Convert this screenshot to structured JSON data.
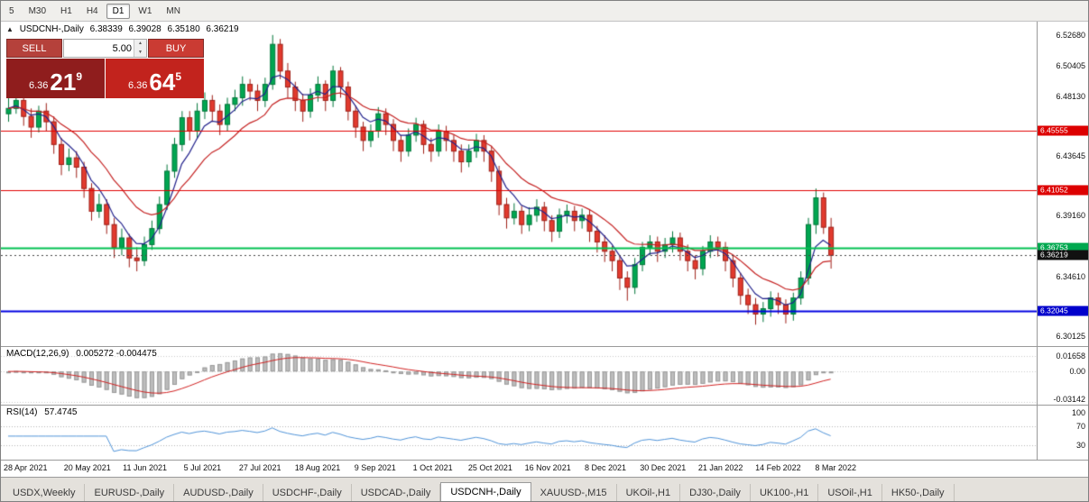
{
  "toolbar": {
    "timeframes": [
      {
        "label": "5",
        "active": false
      },
      {
        "label": "M30",
        "active": false
      },
      {
        "label": "H1",
        "active": false
      },
      {
        "label": "H4",
        "active": false
      },
      {
        "label": "D1",
        "active": true
      },
      {
        "label": "W1",
        "active": false
      },
      {
        "label": "MN",
        "active": false
      }
    ]
  },
  "symbol_info": {
    "arrow": "▲",
    "name": "USDCNH-,Daily",
    "open": "6.38339",
    "high": "6.39028",
    "low": "6.35180",
    "close": "6.36219"
  },
  "trade_panel": {
    "sell_label": "SELL",
    "buy_label": "BUY",
    "volume": "5.00",
    "sell_price": {
      "big": "6.36",
      "mid": "21",
      "sup": "9"
    },
    "buy_price": {
      "big": "6.36",
      "mid": "64",
      "sup": "5"
    }
  },
  "price_axis": {
    "ticks": [
      {
        "label": "6.52680",
        "value": 6.5268
      },
      {
        "label": "6.50405",
        "value": 6.50405
      },
      {
        "label": "6.48130",
        "value": 6.4813
      },
      {
        "label": "6.43645",
        "value": 6.43645
      },
      {
        "label": "6.39160",
        "value": 6.3916
      },
      {
        "label": "6.34610",
        "value": 6.3461
      },
      {
        "label": "6.30125",
        "value": 6.30125
      }
    ],
    "tags": [
      {
        "label": "6.45555",
        "value": 6.45555,
        "color": "#dd0000"
      },
      {
        "label": "6.41052",
        "value": 6.41052,
        "color": "#dd0000"
      },
      {
        "label": "6.36753",
        "value": 6.36753,
        "color": "#00a84f"
      },
      {
        "label": "6.36219",
        "value": 6.36219,
        "color": "#111111"
      },
      {
        "label": "6.32045",
        "value": 6.32045,
        "color": "#0000cc"
      }
    ]
  },
  "macd_panel": {
    "label": "MACD(12,26,9)",
    "values": "0.005272 -0.004475"
  },
  "rsi_panel": {
    "label": "RSI(14)",
    "value": "57.4745"
  },
  "chart_data": {
    "type": "candlestick",
    "symbol": "USDCNH-",
    "timeframe": "Daily",
    "ohlc_display": {
      "open": 6.38339,
      "high": 6.39028,
      "low": 6.3518,
      "close": 6.36219
    },
    "price_range": [
      6.294,
      6.537
    ],
    "bull_color": "#00a651",
    "bull_border": "#00763a",
    "bear_color": "#e23a2e",
    "bear_border": "#9e1f17",
    "overlays": [
      {
        "name": "ma-fast",
        "type": "ema",
        "period": 5,
        "color": "#22228c"
      },
      {
        "name": "ma-slow",
        "type": "ema",
        "period": 13,
        "color": "#c42020"
      }
    ],
    "hlines": [
      {
        "value": 6.45555,
        "color": "#e00000",
        "width": 1,
        "style": "solid"
      },
      {
        "value": 6.41052,
        "color": "#e00000",
        "width": 1,
        "style": "solid"
      },
      {
        "value": 6.36753,
        "color": "#00c050",
        "width": 2,
        "style": "solid"
      },
      {
        "value": 6.32045,
        "color": "#0000e0",
        "width": 2,
        "style": "solid"
      },
      {
        "value": 6.36219,
        "color": "#444444",
        "width": 1,
        "style": "dotted"
      }
    ],
    "x_labels": [
      "28 Apr 2021",
      "20 May 2021",
      "11 Jun 2021",
      "5 Jul 2021",
      "27 Jul 2021",
      "18 Aug 2021",
      "9 Sep 2021",
      "1 Oct 2021",
      "25 Oct 2021",
      "16 Nov 2021",
      "8 Dec 2021",
      "30 Dec 2021",
      "21 Jan 2022",
      "14 Feb 2022",
      "8 Mar 2022"
    ],
    "candles": [
      [
        6.468,
        6.48,
        6.462,
        6.472
      ],
      [
        6.472,
        6.484,
        6.468,
        6.478
      ],
      [
        6.478,
        6.481,
        6.459,
        6.466
      ],
      [
        6.466,
        6.472,
        6.45,
        6.458
      ],
      [
        6.458,
        6.474,
        6.454,
        6.47
      ],
      [
        6.47,
        6.476,
        6.455,
        6.462
      ],
      [
        6.462,
        6.466,
        6.438,
        6.445
      ],
      [
        6.445,
        6.45,
        6.422,
        6.43
      ],
      [
        6.43,
        6.442,
        6.425,
        6.435
      ],
      [
        6.435,
        6.44,
        6.42,
        6.428
      ],
      [
        6.428,
        6.432,
        6.405,
        6.412
      ],
      [
        6.412,
        6.416,
        6.388,
        6.395
      ],
      [
        6.395,
        6.408,
        6.39,
        6.4
      ],
      [
        6.4,
        6.404,
        6.378,
        6.385
      ],
      [
        6.385,
        6.39,
        6.36,
        6.368
      ],
      [
        6.368,
        6.382,
        6.362,
        6.375
      ],
      [
        6.375,
        6.378,
        6.353,
        6.36
      ],
      [
        6.36,
        6.368,
        6.35,
        6.358
      ],
      [
        6.358,
        6.376,
        6.354,
        6.37
      ],
      [
        6.37,
        6.388,
        6.366,
        6.382
      ],
      [
        6.382,
        6.406,
        6.378,
        6.4
      ],
      [
        6.4,
        6.43,
        6.396,
        6.425
      ],
      [
        6.425,
        6.45,
        6.42,
        6.445
      ],
      [
        6.445,
        6.47,
        6.44,
        6.465
      ],
      [
        6.465,
        6.47,
        6.448,
        6.455
      ],
      [
        6.455,
        6.476,
        6.45,
        6.47
      ],
      [
        6.47,
        6.484,
        6.464,
        6.478
      ],
      [
        6.478,
        6.482,
        6.462,
        6.47
      ],
      [
        6.47,
        6.475,
        6.452,
        6.46
      ],
      [
        6.46,
        6.48,
        6.455,
        6.475
      ],
      [
        6.475,
        6.486,
        6.47,
        6.48
      ],
      [
        6.48,
        6.496,
        6.474,
        6.49
      ],
      [
        6.49,
        6.494,
        6.478,
        6.485
      ],
      [
        6.485,
        6.49,
        6.47,
        6.478
      ],
      [
        6.478,
        6.495,
        6.473,
        6.49
      ],
      [
        6.49,
        6.527,
        6.486,
        6.52
      ],
      [
        6.52,
        6.524,
        6.494,
        6.5
      ],
      [
        6.5,
        6.506,
        6.48,
        6.488
      ],
      [
        6.488,
        6.492,
        6.47,
        6.478
      ],
      [
        6.478,
        6.483,
        6.462,
        6.47
      ],
      [
        6.47,
        6.487,
        6.465,
        6.482
      ],
      [
        6.482,
        6.496,
        6.477,
        6.49
      ],
      [
        6.49,
        6.493,
        6.47,
        6.478
      ],
      [
        6.478,
        6.504,
        6.473,
        6.5
      ],
      [
        6.5,
        6.503,
        6.48,
        6.488
      ],
      [
        6.488,
        6.492,
        6.463,
        6.47
      ],
      [
        6.47,
        6.474,
        6.45,
        6.458
      ],
      [
        6.458,
        6.462,
        6.44,
        6.448
      ],
      [
        6.448,
        6.46,
        6.443,
        6.455
      ],
      [
        6.455,
        6.473,
        6.45,
        6.468
      ],
      [
        6.468,
        6.472,
        6.452,
        6.46
      ],
      [
        6.46,
        6.464,
        6.44,
        6.448
      ],
      [
        6.448,
        6.452,
        6.432,
        6.44
      ],
      [
        6.44,
        6.457,
        6.436,
        6.452
      ],
      [
        6.452,
        6.465,
        6.447,
        6.46
      ],
      [
        6.46,
        6.463,
        6.438,
        6.445
      ],
      [
        6.445,
        6.45,
        6.432,
        6.44
      ],
      [
        6.44,
        6.46,
        6.436,
        6.455
      ],
      [
        6.455,
        6.459,
        6.44,
        6.448
      ],
      [
        6.448,
        6.452,
        6.432,
        6.44
      ],
      [
        6.44,
        6.445,
        6.424,
        6.432
      ],
      [
        6.432,
        6.445,
        6.428,
        6.44
      ],
      [
        6.44,
        6.453,
        6.435,
        6.448
      ],
      [
        6.448,
        6.452,
        6.432,
        6.44
      ],
      [
        6.44,
        6.444,
        6.417,
        6.425
      ],
      [
        6.425,
        6.429,
        6.392,
        6.4
      ],
      [
        6.4,
        6.405,
        6.382,
        6.39
      ],
      [
        6.39,
        6.401,
        6.385,
        6.395
      ],
      [
        6.395,
        6.399,
        6.378,
        6.385
      ],
      [
        6.385,
        6.398,
        6.38,
        6.392
      ],
      [
        6.392,
        6.404,
        6.387,
        6.398
      ],
      [
        6.398,
        6.402,
        6.38,
        6.388
      ],
      [
        6.388,
        6.392,
        6.372,
        6.38
      ],
      [
        6.38,
        6.397,
        6.375,
        6.392
      ],
      [
        6.392,
        6.4,
        6.386,
        6.395
      ],
      [
        6.395,
        6.399,
        6.38,
        6.388
      ],
      [
        6.388,
        6.397,
        6.382,
        6.392
      ],
      [
        6.392,
        6.396,
        6.372,
        6.38
      ],
      [
        6.38,
        6.384,
        6.364,
        6.372
      ],
      [
        6.372,
        6.377,
        6.357,
        6.365
      ],
      [
        6.365,
        6.369,
        6.35,
        6.358
      ],
      [
        6.358,
        6.362,
        6.336,
        6.345
      ],
      [
        6.345,
        6.35,
        6.328,
        6.338
      ],
      [
        6.338,
        6.36,
        6.333,
        6.355
      ],
      [
        6.355,
        6.372,
        6.35,
        6.368
      ],
      [
        6.368,
        6.377,
        6.362,
        6.372
      ],
      [
        6.372,
        6.376,
        6.357,
        6.365
      ],
      [
        6.365,
        6.375,
        6.36,
        6.37
      ],
      [
        6.37,
        6.38,
        6.364,
        6.375
      ],
      [
        6.375,
        6.379,
        6.358,
        6.365
      ],
      [
        6.365,
        6.37,
        6.35,
        6.358
      ],
      [
        6.358,
        6.362,
        6.344,
        6.352
      ],
      [
        6.352,
        6.369,
        6.347,
        6.365
      ],
      [
        6.365,
        6.377,
        6.36,
        6.372
      ],
      [
        6.372,
        6.376,
        6.361,
        6.368
      ],
      [
        6.368,
        6.372,
        6.35,
        6.358
      ],
      [
        6.358,
        6.362,
        6.338,
        6.345
      ],
      [
        6.345,
        6.349,
        6.325,
        6.332
      ],
      [
        6.332,
        6.337,
        6.318,
        6.325
      ],
      [
        6.325,
        6.33,
        6.31,
        6.318
      ],
      [
        6.318,
        6.327,
        6.312,
        6.322
      ],
      [
        6.322,
        6.335,
        6.316,
        6.33
      ],
      [
        6.33,
        6.334,
        6.318,
        6.325
      ],
      [
        6.325,
        6.329,
        6.311,
        6.318
      ],
      [
        6.318,
        6.334,
        6.313,
        6.33
      ],
      [
        6.33,
        6.35,
        6.325,
        6.345
      ],
      [
        6.345,
        6.39,
        6.34,
        6.385
      ],
      [
        6.385,
        6.412,
        6.378,
        6.405
      ],
      [
        6.405,
        6.409,
        6.378,
        6.383
      ],
      [
        6.383,
        6.39,
        6.352,
        6.362
      ]
    ],
    "macd": {
      "fast": 12,
      "slow": 26,
      "signal": 9,
      "range": [
        -0.0345,
        0.0255
      ],
      "ticks": [
        {
          "label": "0.01658",
          "value": 0.01658
        },
        {
          "label": "0.00",
          "value": 0
        },
        {
          "label": "-0.03142",
          "value": -0.03142
        }
      ],
      "hist_color": "#bdbdbd",
      "hist_border": "#9a9a9a",
      "signal_color": "#d02020"
    },
    "rsi": {
      "period": 14,
      "range": [
        0,
        115
      ],
      "ticks": [
        {
          "label": "100",
          "value": 100
        },
        {
          "label": "70",
          "value": 70
        },
        {
          "label": "30",
          "value": 30
        }
      ],
      "levels": [
        70,
        30
      ],
      "color": "#4f93d8"
    }
  },
  "tabs": [
    {
      "label": "USDX,Weekly",
      "active": false
    },
    {
      "label": "EURUSD-,Daily",
      "active": false
    },
    {
      "label": "AUDUSD-,Daily",
      "active": false
    },
    {
      "label": "USDCHF-,Daily",
      "active": false
    },
    {
      "label": "USDCAD-,Daily",
      "active": false
    },
    {
      "label": "USDCNH-,Daily",
      "active": true
    },
    {
      "label": "XAUUSD-,M15",
      "active": false
    },
    {
      "label": "UKOil-,H1",
      "active": false
    },
    {
      "label": "DJ30-,Daily",
      "active": false
    },
    {
      "label": "UK100-,H1",
      "active": false
    },
    {
      "label": "USOil-,H1",
      "active": false
    },
    {
      "label": "HK50-,Daily",
      "active": false
    }
  ]
}
